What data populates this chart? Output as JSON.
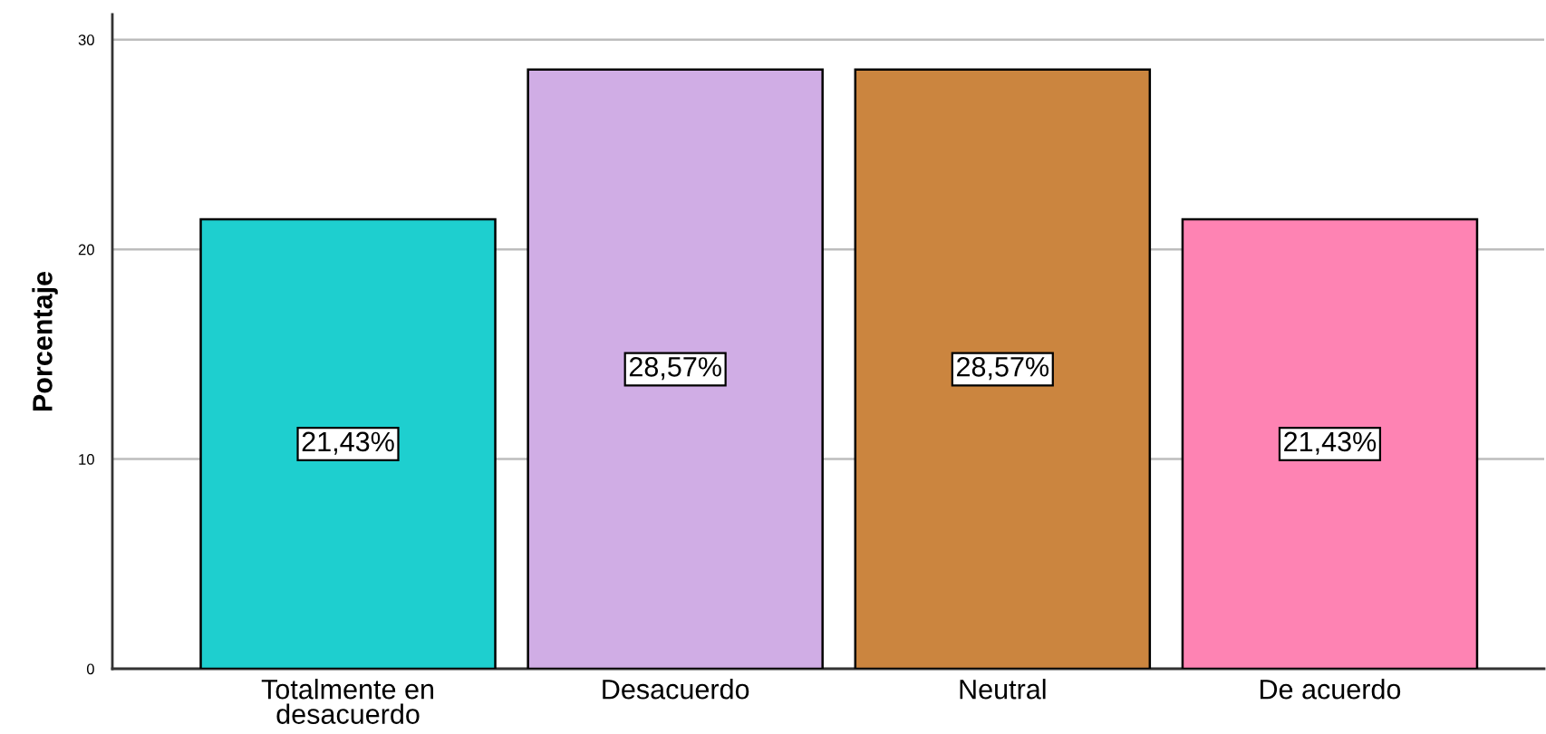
{
  "chart_data": {
    "type": "bar",
    "ylabel": "Porcentaje",
    "categories": [
      "Totalmente en\ndesacuerdo",
      "Desacuerdo",
      "Neutral",
      "De acuerdo"
    ],
    "values": [
      21.43,
      28.57,
      28.57,
      21.43
    ],
    "colors": [
      "#1ecfcf",
      "#d0ade5",
      "#cb853f",
      "#fe83b3"
    ],
    "value_labels": [
      "21,43%",
      "28,57%",
      "28,57%",
      "21,43%"
    ],
    "ylim": [
      0,
      31.2
    ],
    "yticks": [
      0,
      10,
      20,
      30
    ],
    "grid": "y"
  }
}
